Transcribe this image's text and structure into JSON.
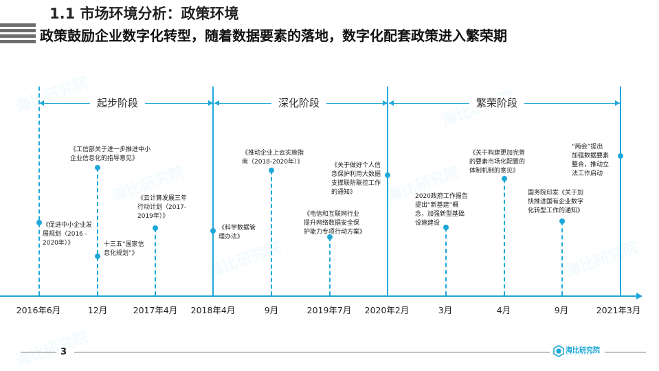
{
  "header": {
    "title": "1.1 市场环境分析：政策环境",
    "subtitle": "政策鼓励企业数字化转型，随着数据要素的落地，数字化配套政策进入繁荣期"
  },
  "phases": [
    {
      "label": "起步阶段"
    },
    {
      "label": "深化阶段"
    },
    {
      "label": "繁荣阶段"
    }
  ],
  "timeline": {
    "ticks": [
      "2016年6月",
      "12月",
      "2017年4月",
      "2018年4月",
      "9月",
      "2019年7月",
      "2020年2月",
      "3月",
      "4月",
      "9月",
      "2021年3月"
    ]
  },
  "events": [
    {
      "text": "《促进中小企业发\n展规划（2016 -\n2020年）》"
    },
    {
      "text": "《工信部关于进一步推进中小\n企业信息化的指导意见》"
    },
    {
      "text": "十三五“国家信\n息化规划”》"
    },
    {
      "text": "《云计算发展三年\n行动计划（2017-\n2019年）》"
    },
    {
      "text": "《科学数据管\n理办法》"
    },
    {
      "text": "《推动企业上云实施指\n南（2018-2020年）》"
    },
    {
      "text": "《电信和互联网行业\n提升网络数据安全保\n护能力专项行动方案》"
    },
    {
      "text": "《关于做好个人信\n息保护利用大数据\n支撑联防联控工作\n的通知》"
    },
    {
      "text": "2020政府工作报告\n提出“新基建”概\n念，加强新型基础\n设施建设"
    },
    {
      "text": "《关于构建更加完善\n的要素市场化配置的\n体制机制的意见》"
    },
    {
      "text": "国务院印发《关于加\n快推进国有企业数字\n化转型工作的通知》"
    },
    {
      "text": "“两会”提出\n加强数据要素\n整合，推动立\n法工作启动"
    }
  ],
  "footer": {
    "page_number": "3",
    "logo_text": "海比研究院",
    "logo_sub": "HAI ACADEMY"
  },
  "watermark": {
    "text": "海比研究院"
  },
  "colors": {
    "accent": "#1ea8d8",
    "text": "#222222",
    "gray": "#6e6e6e"
  }
}
